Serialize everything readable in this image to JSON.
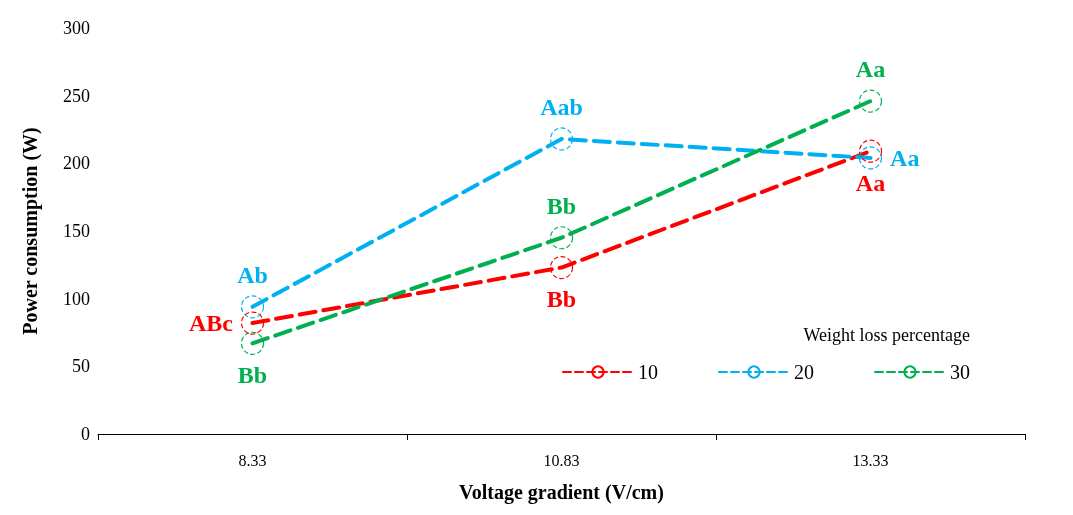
{
  "chart_data": {
    "type": "line",
    "xlabel": "Voltage gradient (V/cm)",
    "ylabel": "Power consumption (W)",
    "legend_title": "Weight loss percentage",
    "categories": [
      "8.33",
      "10.83",
      "13.33"
    ],
    "series": [
      {
        "name": "10",
        "color": "#ff0000",
        "values": [
          82,
          123,
          209
        ],
        "value_labels": [
          "ABc",
          "Bb",
          "Aa"
        ]
      },
      {
        "name": "20",
        "color": "#00b0f0",
        "values": [
          94,
          218,
          204
        ],
        "value_labels": [
          "Ab",
          "Aab",
          "Aa"
        ]
      },
      {
        "name": "30",
        "color": "#00b050",
        "values": [
          67,
          145,
          246
        ],
        "value_labels": [
          "Bb",
          "Bb",
          "Aa"
        ]
      }
    ],
    "ylim": [
      0,
      300
    ],
    "yticks": [
      0,
      50,
      100,
      150,
      200,
      250,
      300
    ],
    "grid": false,
    "legend": "bottom right",
    "marker": "circle",
    "line_style": "dashed"
  }
}
